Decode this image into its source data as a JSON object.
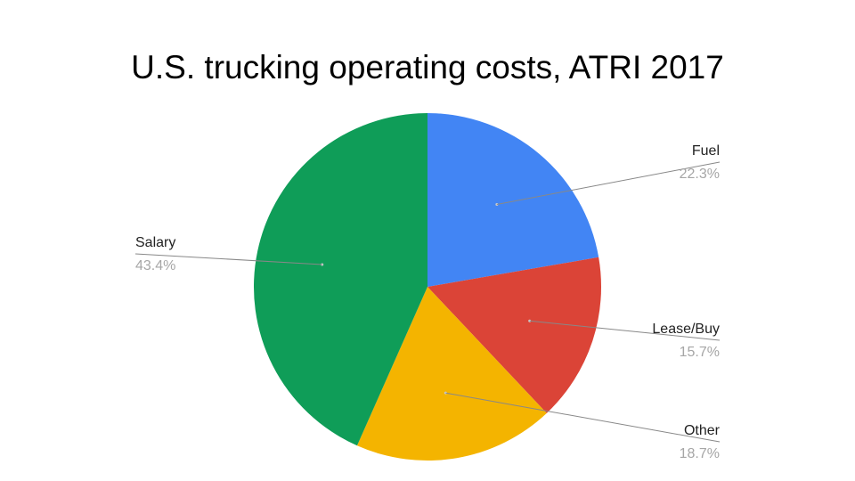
{
  "chart_data": {
    "type": "pie",
    "title": "U.S. trucking operating costs, ATRI 2017",
    "start_angle_deg": 0,
    "direction": "clockwise",
    "slices": [
      {
        "label": "Fuel",
        "value": 22.3,
        "display": "22.3%",
        "color": "#4285f4",
        "label_side": "right"
      },
      {
        "label": "Lease/Buy",
        "value": 15.7,
        "display": "15.7%",
        "color": "#db4437",
        "label_side": "right"
      },
      {
        "label": "Other",
        "value": 18.7,
        "display": "18.7%",
        "color": "#f4b400",
        "label_side": "right"
      },
      {
        "label": "Salary",
        "value": 43.4,
        "display": "43.4%",
        "color": "#0f9d58",
        "label_side": "left"
      }
    ],
    "legend": "none",
    "label_style": "callout"
  }
}
